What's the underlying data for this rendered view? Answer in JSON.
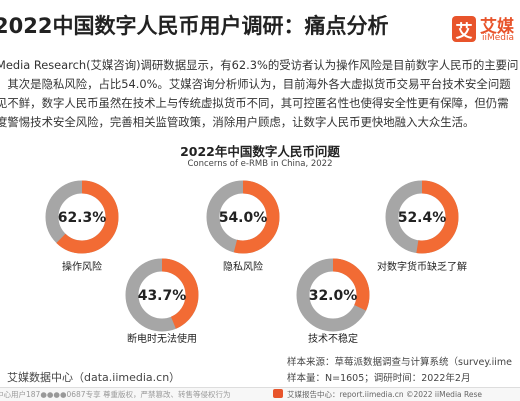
{
  "header": {
    "title": "2022中国数字人民币用户调研：痛点分析",
    "logo_cn": "艾媒",
    "logo_en": "iiMedia"
  },
  "intro": {
    "line1": "Media Research(艾媒咨询)调研数据显示，有62.3%的受访者认为操作风险是目前数字人民币的主要问",
    "line2": "；其次是隐私风险，占比54.0%。艾媒咨询分析师认为，目前海外各大虚拟货币交易平台技术安全问题",
    "line3": "见不鲜，数字人民币虽然在技术上与传统虚拟货币不同，其可控匿名性也使得安全性更有保障，但仍需",
    "line4": "度警惕技术安全风险，完善相关监管政策，消除用户顾虑，让数字人民币更快地融入大众生活。"
  },
  "colors": {
    "accent": "#f26b34",
    "ring_track": "#a6a6a6",
    "brand": "#e8542b"
  },
  "chart_data": {
    "type": "pie",
    "style": "donut-rings",
    "title": "2022年中国数字人民币问题",
    "subtitle": "Concerns of e-RMB in China, 2022",
    "unit": "%",
    "categories": [
      "操作风险",
      "隐私风险",
      "对数字货币缺乏了解",
      "断电时无法使用",
      "技术不稳定"
    ],
    "values": [
      62.3,
      54.0,
      52.4,
      43.7,
      32.0
    ],
    "value_labels": [
      "62.3%",
      "54.0%",
      "52.4%",
      "43.7%",
      "32.0%"
    ]
  },
  "footer": {
    "source_left": "：艾媒数据中心（data.iimedia.cn）",
    "sample_source": "样本来源：草莓派数据调查与计算系统（survey.iime",
    "sample_size": "样本量：N=1605；调研时间：2022年2月"
  },
  "bottom_bar": {
    "left_text": "中心用户187●●●●0687专享 尊重版权，严禁篡改、转售等侵权行为",
    "right_text": "艾媒报告中心：report.iimedia.cn  ©2022 iiMedia Rese"
  }
}
